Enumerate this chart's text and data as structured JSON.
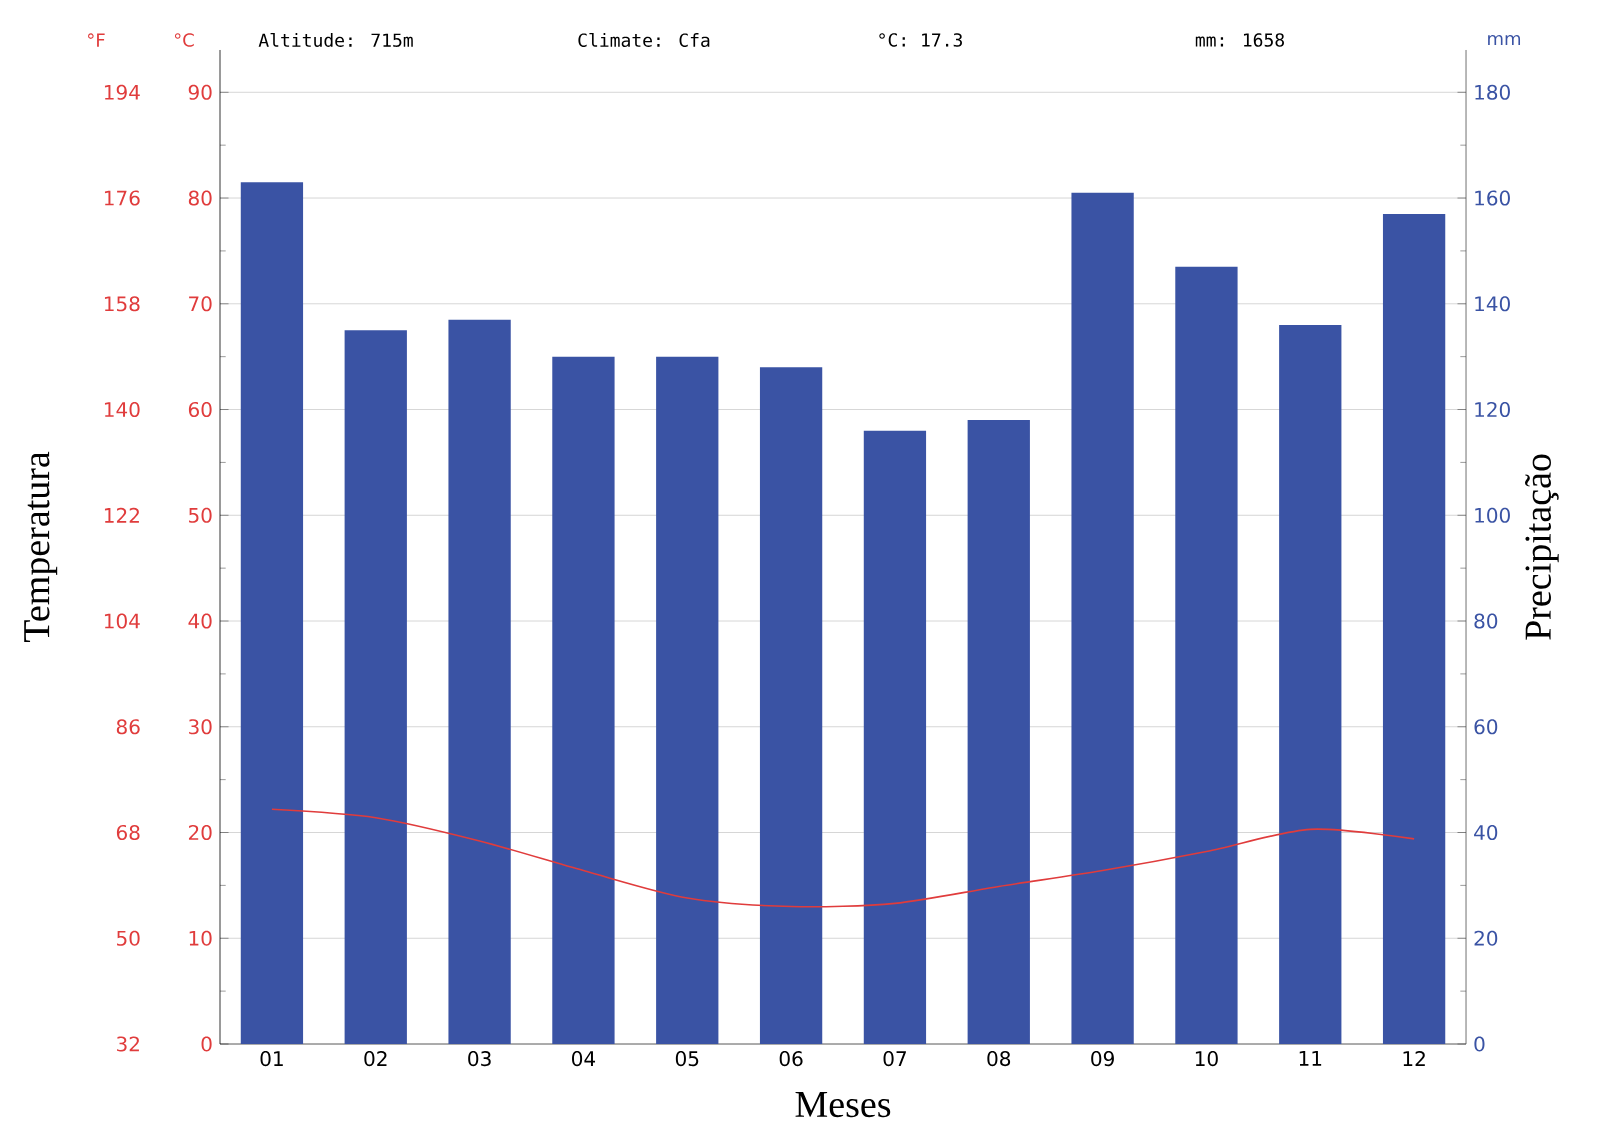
{
  "chart_data": {
    "type": "bar",
    "categories": [
      "01",
      "02",
      "03",
      "04",
      "05",
      "06",
      "07",
      "08",
      "09",
      "10",
      "11",
      "12"
    ],
    "series": [
      {
        "axis": "y2",
        "color": "#3a53a4",
        "values": [
          163,
          135,
          137,
          130,
          130,
          128,
          116,
          118,
          161,
          147,
          136,
          157
        ]
      },
      {
        "type": "line",
        "axis": "y",
        "color": "#e03c3c",
        "marker": "none",
        "line_style": "solid",
        "values": [
          22.2,
          21.4,
          19.2,
          16.4,
          13.8,
          13.0,
          13.3,
          14.9,
          16.4,
          18.2,
          20.3,
          19.4
        ]
      }
    ],
    "xlabel": "Meses",
    "ylabel": "Temperatura",
    "y2label": "Precipitação",
    "ylim": [
      0,
      94
    ],
    "yticks": [
      0,
      10,
      20,
      30,
      40,
      50,
      60,
      70,
      80,
      90
    ],
    "y2lim": [
      0,
      188
    ],
    "y2ticks": [
      0,
      20,
      40,
      60,
      80,
      100,
      120,
      140,
      160,
      180
    ],
    "y3lim": [
      32,
      201.2
    ],
    "y3ticks": [
      32,
      50,
      68,
      86,
      104,
      122,
      140,
      158,
      176,
      194
    ],
    "grid": "y",
    "annotations": [
      "°F",
      "°C",
      "Altitude: 715m",
      "Climate: Cfa",
      "°C: 17.3",
      "mm: 1658",
      "mm"
    ]
  }
}
